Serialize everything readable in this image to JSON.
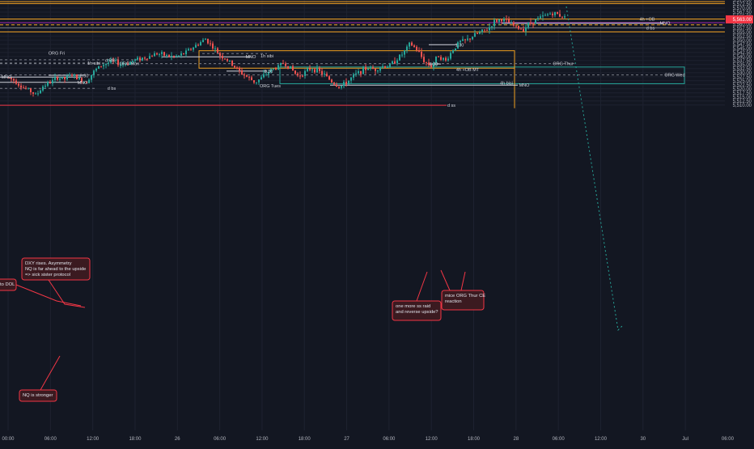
{
  "chart_data": {
    "type": "candlestick",
    "symbol": "",
    "ylim": [
      5308.5,
      5575.0
    ],
    "y_ticks": [
      "5,575.00",
      "5,572.50",
      "5,570.00",
      "5,567.50",
      "5,565.00",
      "5,562.50",
      "5,560.00",
      "5,557.50",
      "5,555.00",
      "5,552.50",
      "5,550.00",
      "5,547.50",
      "5,545.00",
      "5,542.50",
      "5,540.00",
      "5,537.50",
      "5,535.00",
      "5,532.50",
      "5,530.00",
      "5,527.50",
      "5,525.00",
      "5,522.50",
      "5,520.00",
      "5,517.50",
      "5,515.00",
      "5,512.50",
      "5,510.00"
    ],
    "y_tick_values": [
      5575,
      5572.5,
      5570,
      5567.5,
      5565,
      5562.5,
      5560,
      5557.5,
      5555,
      5552.5,
      5550,
      5547.5,
      5545,
      5542.5,
      5540,
      5537.5,
      5535,
      5532.5,
      5530,
      5527.5,
      5525,
      5522.5,
      5520,
      5517.5,
      5515,
      5512.5,
      5510
    ],
    "x_ticks": [
      "00:00",
      "06:00",
      "12:00",
      "18:00",
      "26",
      "06:00",
      "12:00",
      "18:00",
      "27",
      "06:00",
      "12:00",
      "18:00",
      "28",
      "06:00",
      "12:00",
      "30",
      "Jul",
      "06:00"
    ],
    "x_tick_index": [
      0,
      6,
      12,
      18,
      24,
      30,
      36,
      42,
      48,
      54,
      60,
      66,
      72,
      78,
      84,
      90,
      96,
      102
    ],
    "last_price": {
      "label": "5,563.00",
      "value": 5563.0,
      "color": "#f23645"
    },
    "colors": {
      "up": "#26a69a",
      "down": "#ef5350",
      "background": "#131722",
      "grid": "#1e2230",
      "level_orange": "#f0a020",
      "level_purple": "#9c27b0",
      "zone_teal": "#26a69a"
    },
    "price_path": [
      [
        0,
        5527
      ],
      [
        1,
        5525
      ],
      [
        2,
        5521
      ],
      [
        3,
        5519
      ],
      [
        4,
        5516
      ],
      [
        5,
        5522
      ],
      [
        6,
        5524
      ],
      [
        7,
        5527
      ],
      [
        8,
        5526
      ],
      [
        9,
        5529
      ],
      [
        10,
        5526
      ],
      [
        11,
        5524
      ],
      [
        12,
        5530
      ],
      [
        13,
        5534
      ],
      [
        14,
        5536
      ],
      [
        15,
        5537
      ],
      [
        16,
        5535
      ],
      [
        17,
        5536
      ],
      [
        18,
        5538
      ],
      [
        19,
        5539
      ],
      [
        20,
        5540
      ],
      [
        21,
        5542
      ],
      [
        22,
        5541
      ],
      [
        23,
        5540
      ],
      [
        24,
        5540
      ],
      [
        25,
        5542
      ],
      [
        26,
        5545
      ],
      [
        27,
        5548
      ],
      [
        28,
        5551
      ],
      [
        29,
        5546
      ],
      [
        30,
        5541
      ],
      [
        31,
        5538
      ],
      [
        32,
        5534
      ],
      [
        33,
        5530
      ],
      [
        34,
        5527
      ],
      [
        35,
        5524
      ],
      [
        36,
        5527
      ],
      [
        37,
        5531
      ],
      [
        38,
        5533
      ],
      [
        39,
        5536
      ],
      [
        40,
        5533
      ],
      [
        41,
        5528
      ],
      [
        42,
        5530
      ],
      [
        43,
        5533
      ],
      [
        44,
        5531
      ],
      [
        45,
        5528
      ],
      [
        46,
        5524
      ],
      [
        47,
        5521
      ],
      [
        48,
        5524
      ],
      [
        49,
        5528
      ],
      [
        50,
        5531
      ],
      [
        51,
        5533
      ],
      [
        52,
        5532
      ],
      [
        53,
        5534
      ],
      [
        54,
        5534
      ],
      [
        55,
        5538
      ],
      [
        56,
        5542
      ],
      [
        57,
        5548
      ],
      [
        58,
        5544
      ],
      [
        59,
        5537
      ],
      [
        60,
        5534
      ],
      [
        61,
        5541
      ],
      [
        62,
        5537
      ],
      [
        63,
        5544
      ],
      [
        64,
        5549
      ],
      [
        65,
        5550
      ],
      [
        66,
        5553
      ],
      [
        67,
        5555
      ],
      [
        68,
        5557
      ],
      [
        69,
        5562
      ],
      [
        70,
        5563
      ],
      [
        71,
        5561
      ],
      [
        72,
        5558
      ],
      [
        73,
        5557
      ],
      [
        74,
        5561
      ],
      [
        75,
        5563
      ],
      [
        76,
        5565
      ],
      [
        77,
        5567
      ],
      [
        78,
        5566
      ],
      [
        79,
        5564
      ],
      [
        80,
        5563
      ]
    ],
    "annotations": [
      {
        "text": "DXY rises. Asymmetry\nNQ is far ahead to the upside\n=> sick sister protocol"
      },
      {
        "text": "to DOL"
      },
      {
        "text": "NQ is stronger"
      },
      {
        "text": "one more ss raid\nand reverse upside?"
      },
      {
        "text": "mice ORG Thur CE\nreaction"
      }
    ],
    "level_labels": [
      {
        "text": "4h +OB"
      },
      {
        "text": "MNO"
      },
      {
        "text": "d bs"
      },
      {
        "text": "1.30"
      },
      {
        "text": "ORG Fri"
      },
      {
        "text": "1h sibi"
      },
      {
        "text": "MNO"
      },
      {
        "text": "ORG Mon"
      },
      {
        "text": "d RB"
      },
      {
        "text": "1h sibi"
      },
      {
        "text": "8.30"
      },
      {
        "text": "ORG Thur"
      },
      {
        "text": "4h +OB MT"
      },
      {
        "text": "8.30"
      },
      {
        "text": "ORG Wed"
      },
      {
        "text": "4h bisi"
      },
      {
        "text": "MNO"
      },
      {
        "text": "ORG Tues"
      },
      {
        "text": "8.30"
      },
      {
        "text": "MNO"
      },
      {
        "text": "MNO"
      },
      {
        "text": "d bs"
      },
      {
        "text": "d ss"
      }
    ]
  }
}
